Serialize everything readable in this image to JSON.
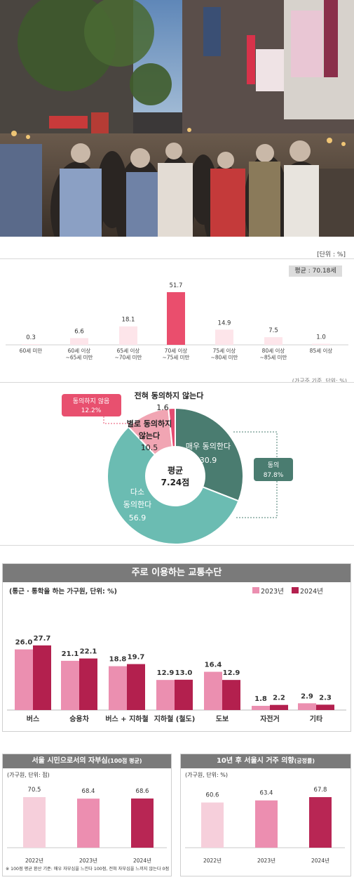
{
  "age_chart": {
    "unit": "[단위 : %]",
    "average": "평균 : 70.18세",
    "footnote": "(가구주 기준, 단위: %)",
    "chart_data": {
      "type": "bar",
      "categories": [
        "60세 미만",
        "60세 이상 ~65세 미만",
        "65세 이상 ~70세 미만",
        "70세 이상 ~75세 미만",
        "75세 이상 ~80세 미만",
        "80세 이상 ~85세 미만",
        "85세 이상"
      ],
      "category_lines": [
        [
          "60세 미만"
        ],
        [
          "60세 이상",
          "~65세 미만"
        ],
        [
          "65세 이상",
          "~70세 미만"
        ],
        [
          "70세 이상",
          "~75세 미만"
        ],
        [
          "75세 이상",
          "~80세 미만"
        ],
        [
          "80세 이상",
          "~85세 미만"
        ],
        [
          "85세 이상"
        ]
      ],
      "values": [
        0.3,
        6.6,
        18.1,
        51.7,
        14.9,
        7.5,
        1.0
      ],
      "labels": [
        "0.3",
        "6.6",
        "18.1",
        "51.7",
        "14.9",
        "7.5",
        "1.0"
      ],
      "highlight_index": 3,
      "ylim": [
        0,
        51.7
      ]
    }
  },
  "donut_chart": {
    "center_title": "평균",
    "center_value": "7.24점",
    "callout_disagree": {
      "title": "동의하지 않음",
      "value": "12.2%"
    },
    "callout_agree": {
      "title": "동의",
      "value": "87.8%"
    },
    "chart_data": {
      "type": "pie",
      "categories": [
        "매우 동의한다",
        "다소 동의한다",
        "별로 동의하지 않는다",
        "전혀 동의하지 않는다"
      ],
      "label_lines": [
        [
          "매우 동의한다"
        ],
        [
          "다소",
          "동의한다"
        ],
        [
          "별로 동의하지",
          "않는다"
        ],
        [
          "전혀 동의하지 않는다"
        ]
      ],
      "values": [
        30.9,
        56.9,
        10.5,
        1.6
      ],
      "labels": [
        "30.9",
        "56.9",
        "10.5",
        "1.6"
      ],
      "colors": [
        "#4a7c70",
        "#6bbcb2",
        "#f1a5b3",
        "#e44c71"
      ]
    }
  },
  "transport_chart": {
    "title": "주로 이용하는 교통수단",
    "subtitle": "(통근 · 통학을 하는 가구원, 단위: %)",
    "chart_data": {
      "type": "bar",
      "categories": [
        "버스",
        "승용차",
        "버스 + 지하철",
        "지하철 (철도)",
        "도보",
        "자전거",
        "기타"
      ],
      "series": [
        {
          "name": "2023년",
          "values": [
            26.0,
            21.1,
            18.8,
            12.9,
            16.4,
            1.8,
            2.9
          ],
          "labels": [
            "26.0",
            "21.1",
            "18.8",
            "12.9",
            "16.4",
            "1.8",
            "2.9"
          ],
          "color": "#eb8fb0"
        },
        {
          "name": "2024년",
          "values": [
            27.7,
            22.1,
            19.7,
            13.0,
            12.9,
            2.2,
            2.3
          ],
          "labels": [
            "27.7",
            "22.1",
            "19.7",
            "13.0",
            "12.9",
            "2.2",
            "2.3"
          ],
          "color": "#b3204e"
        }
      ],
      "ylim": [
        0,
        27.7
      ]
    }
  },
  "pride_chart": {
    "title": "서울 시민으로서의 자부심",
    "title_suffix": "(100점 평균)",
    "subtitle": "(가구원, 단위: 점)",
    "note": "※ 100점 평균 환산 기준: 매우 자부심을 느낀다 100점, 전혀 자부심을 느끼지 않는다 0점",
    "chart_data": {
      "type": "bar",
      "categories": [
        "2022년",
        "2023년",
        "2024년"
      ],
      "values": [
        70.5,
        68.4,
        68.6
      ],
      "labels": [
        "70.5",
        "68.4",
        "68.6"
      ],
      "colors": [
        "#f6cfdb",
        "#ec8eb0",
        "#b82654"
      ],
      "ylim": [
        0,
        70.5
      ]
    }
  },
  "residence_chart": {
    "title": "10년 후 서울시 거주 의향",
    "title_suffix": "(긍정률)",
    "subtitle": "(가구원, 단위: %)",
    "chart_data": {
      "type": "bar",
      "categories": [
        "2022년",
        "2023년",
        "2024년"
      ],
      "values": [
        60.6,
        63.4,
        67.8
      ],
      "labels": [
        "60.6",
        "63.4",
        "67.8"
      ],
      "colors": [
        "#f6cfdb",
        "#ec8eb0",
        "#b82654"
      ],
      "ylim": [
        0,
        67.8
      ]
    }
  }
}
